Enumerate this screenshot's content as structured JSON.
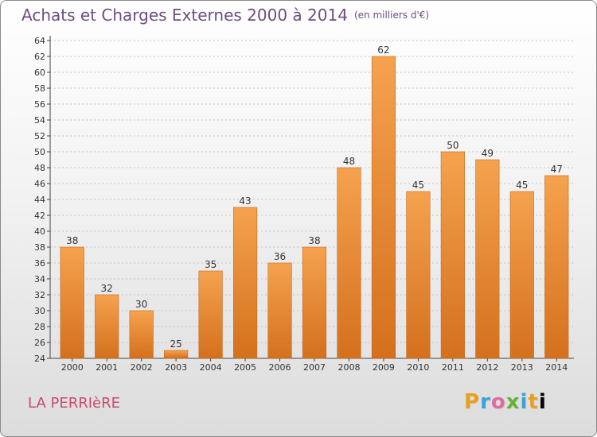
{
  "title": "Achats et Charges Externes 2000 à 2014",
  "unit": "(en milliers d'€)",
  "location": "LA PERRIèRE",
  "brand": [
    "P",
    "r",
    "o",
    "x",
    "i",
    "t",
    "i"
  ],
  "colors": {
    "bar_top": "#f5a24e",
    "bar_bottom": "#d4701d",
    "bar_edge": "#c8691e"
  },
  "chart_data": {
    "type": "bar",
    "categories": [
      "2000",
      "2001",
      "2002",
      "2003",
      "2004",
      "2005",
      "2006",
      "2007",
      "2008",
      "2009",
      "2010",
      "2011",
      "2012",
      "2013",
      "2014"
    ],
    "values": [
      38,
      32,
      30,
      25,
      35,
      43,
      36,
      38,
      48,
      62,
      45,
      50,
      49,
      45,
      47
    ],
    "ylim": [
      24,
      64
    ],
    "yticks": [
      24,
      26,
      28,
      30,
      32,
      34,
      36,
      38,
      40,
      42,
      44,
      46,
      48,
      50,
      52,
      54,
      56,
      58,
      60,
      62,
      64
    ],
    "grid": true,
    "title": "Achats et Charges Externes 2000 à 2014",
    "xlabel": "",
    "ylabel": ""
  }
}
